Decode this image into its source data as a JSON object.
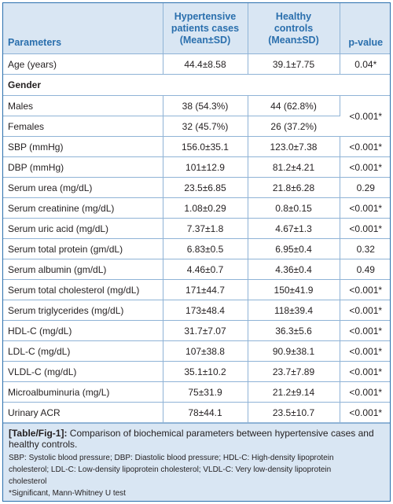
{
  "table": {
    "headers": {
      "parameters": "Parameters",
      "cases_line1": "Hypertensive",
      "cases_line2": "patients cases",
      "cases_line3": "(Mean±SD)",
      "controls_line1": "Healthy",
      "controls_line2": "controls",
      "controls_line3": "(Mean±SD)",
      "pvalue": "p-value"
    },
    "age": {
      "label": "Age (years)",
      "cases": "44.4±8.58",
      "controls": "39.1±7.75",
      "p": "0.04*"
    },
    "gender_section": "Gender",
    "males": {
      "label": "Males",
      "cases": "38 (54.3%)",
      "controls": "44 (62.8%)"
    },
    "females": {
      "label": "Females",
      "cases": "32 (45.7%)",
      "controls": "26 (37.2%)"
    },
    "gender_p": "<0.001*",
    "rows": [
      {
        "label": "SBP (mmHg)",
        "cases": "156.0±35.1",
        "controls": "123.0±7.38",
        "p": "<0.001*"
      },
      {
        "label": "DBP (mmHg)",
        "cases": "101±12.9",
        "controls": "81.2±4.21",
        "p": "<0.001*"
      },
      {
        "label": "Serum urea (mg/dL)",
        "cases": "23.5±6.85",
        "controls": "21.8±6.28",
        "p": "0.29"
      },
      {
        "label": "Serum creatinine (mg/dL)",
        "cases": "1.08±0.29",
        "controls": "0.8±0.15",
        "p": "<0.001*"
      },
      {
        "label": "Serum uric acid (mg/dL)",
        "cases": "7.37±1.8",
        "controls": "4.67±1.3",
        "p": "<0.001*"
      },
      {
        "label": "Serum total protein (gm/dL)",
        "cases": "6.83±0.5",
        "controls": "6.95±0.4",
        "p": "0.32"
      },
      {
        "label": "Serum albumin (gm/dL)",
        "cases": "4.46±0.7",
        "controls": "4.36±0.4",
        "p": "0.49"
      },
      {
        "label": "Serum total cholesterol (mg/dL)",
        "cases": "171±44.7",
        "controls": "150±41.9",
        "p": "<0.001*"
      },
      {
        "label": "Serum triglycerides (mg/dL)",
        "cases": "173±48.4",
        "controls": "118±39.4",
        "p": "<0.001*"
      },
      {
        "label": "HDL-C (mg/dL)",
        "cases": "31.7±7.07",
        "controls": "36.3±5.6",
        "p": "<0.001*"
      },
      {
        "label": "LDL-C (mg/dL)",
        "cases": "107±38.8",
        "controls": "90.9±38.1",
        "p": "<0.001*"
      },
      {
        "label": "VLDL-C (mg/dL)",
        "cases": "35.1±10.2",
        "controls": "23.7±7.89",
        "p": "<0.001*"
      },
      {
        "label": "Microalbuminuria (mg/L)",
        "cases": "75±31.9",
        "controls": "21.2±9.14",
        "p": "<0.001*"
      },
      {
        "label": "Urinary ACR",
        "cases": "78±44.1",
        "controls": "23.5±10.7",
        "p": "<0.001*"
      }
    ]
  },
  "caption": {
    "tag": "[Table/Fig-1]:",
    "title": " Comparison of biochemical parameters between hypertensive cases and healthy controls.",
    "abbrev_line1": "SBP: Systolic blood pressure; DBP: Diastolic blood pressure; HDL-C: High-density lipoprotein",
    "abbrev_line2": "cholesterol; LDL-C: Low-density lipoprotein cholesterol; VLDL-C: Very low-density lipoprotein",
    "abbrev_line3": "cholesterol",
    "footnote": "*Significant, Mann-Whitney U test"
  }
}
